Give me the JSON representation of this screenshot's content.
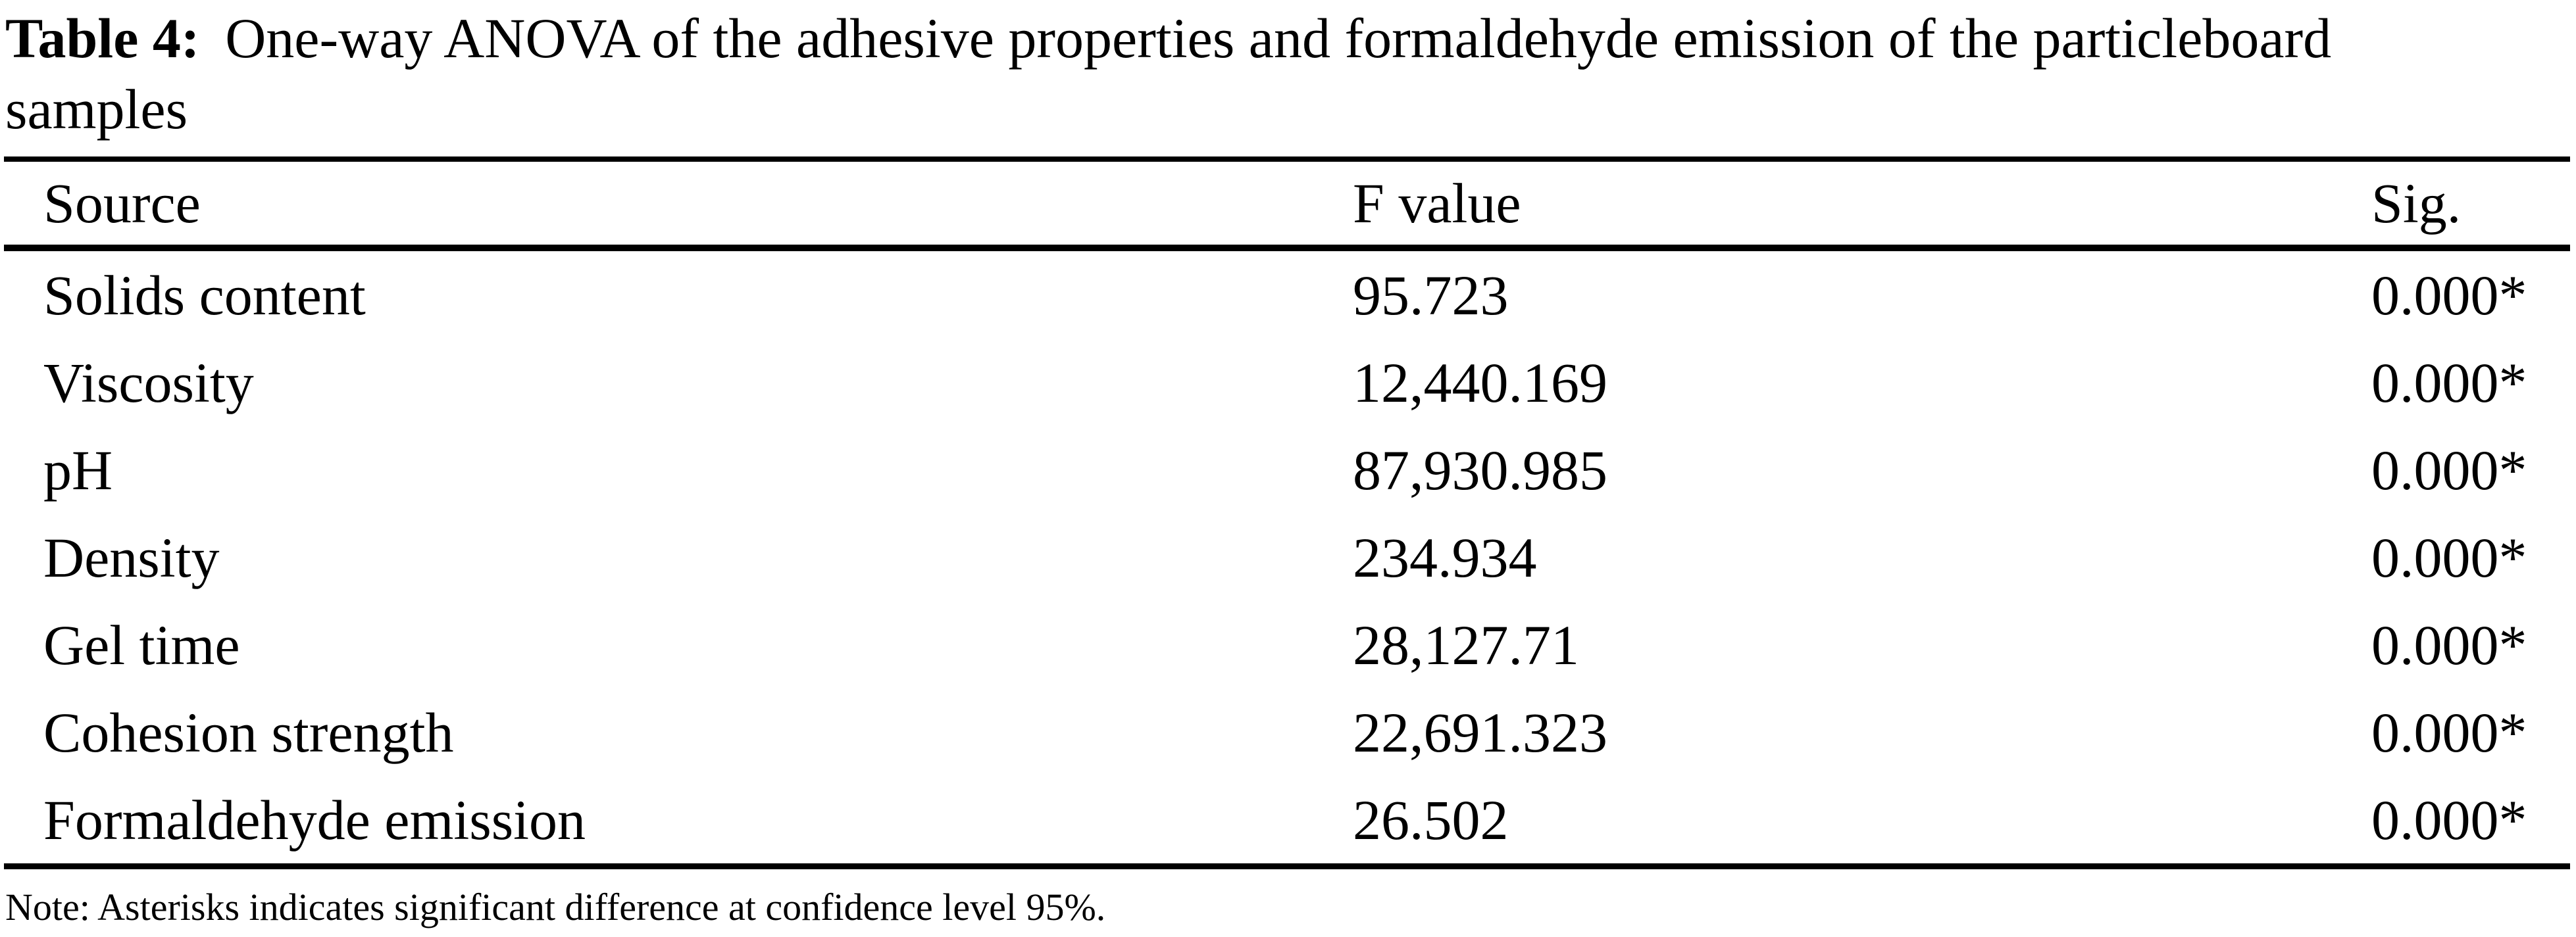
{
  "caption": {
    "label": "Table 4:",
    "title_line1": "One-way ANOVA of the adhesive properties and formaldehyde emission of the particleboard",
    "title_line2": "samples"
  },
  "table": {
    "columns": [
      "Source",
      "F value",
      "Sig."
    ],
    "rows": [
      {
        "source": "Solids content",
        "f_value": "95.723",
        "sig": "0.000*"
      },
      {
        "source": "Viscosity",
        "f_value": "12,440.169",
        "sig": "0.000*"
      },
      {
        "source": "pH",
        "f_value": "87,930.985",
        "sig": "0.000*"
      },
      {
        "source": "Density",
        "f_value": "234.934",
        "sig": "0.000*"
      },
      {
        "source": "Gel time",
        "f_value": "28,127.71",
        "sig": "0.000*"
      },
      {
        "source": "Cohesion strength",
        "f_value": "22,691.323",
        "sig": "0.000*"
      },
      {
        "source": "Formaldehyde emission",
        "f_value": "26.502",
        "sig": "0.000*"
      }
    ]
  },
  "note": "Note: Asterisks indicates significant difference at confidence level 95%.",
  "colors": {
    "text": "#000000",
    "background": "#ffffff",
    "rule": "#000000"
  }
}
